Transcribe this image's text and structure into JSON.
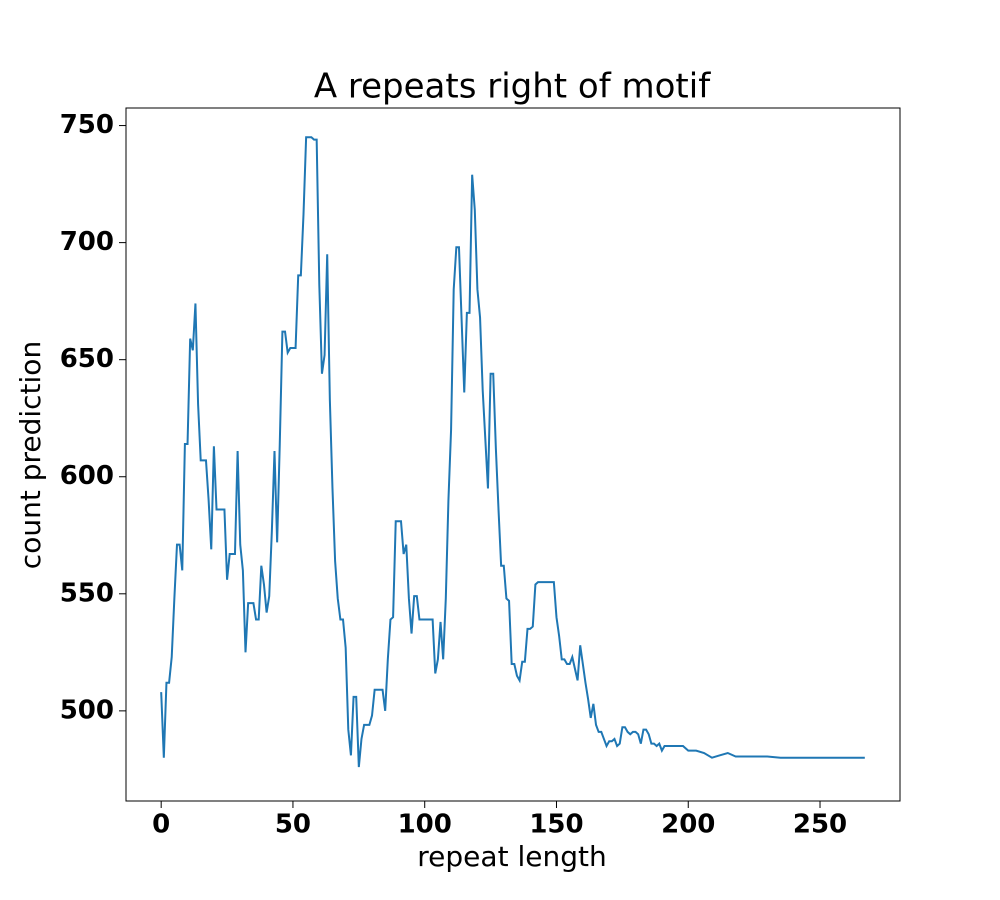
{
  "chart_data": {
    "type": "line",
    "title": "A repeats right of motif",
    "xlabel": "repeat length",
    "ylabel": "count prediction",
    "color": "#1f77b4",
    "x": [
      0,
      1,
      2,
      3,
      4,
      5,
      6,
      7,
      8,
      9,
      10,
      11,
      12,
      13,
      14,
      15,
      16,
      17,
      18,
      19,
      20,
      21,
      22,
      23,
      24,
      25,
      26,
      27,
      28,
      29,
      30,
      31,
      32,
      33,
      34,
      35,
      36,
      37,
      38,
      39,
      40,
      41,
      42,
      43,
      44,
      45,
      46,
      47,
      48,
      49,
      50,
      51,
      52,
      53,
      54,
      55,
      56,
      57,
      58,
      59,
      60,
      61,
      62,
      63,
      64,
      65,
      66,
      67,
      68,
      69,
      70,
      71,
      72,
      73,
      74,
      75,
      76,
      77,
      78,
      79,
      80,
      81,
      82,
      83,
      84,
      85,
      86,
      87,
      88,
      89,
      90,
      91,
      92,
      93,
      94,
      95,
      96,
      97,
      98,
      99,
      100,
      101,
      102,
      103,
      104,
      105,
      106,
      107,
      108,
      109,
      110,
      111,
      112,
      113,
      114,
      115,
      116,
      117,
      118,
      119,
      120,
      121,
      122,
      123,
      124,
      125,
      126,
      127,
      128,
      129,
      130,
      131,
      132,
      133,
      134,
      135,
      136,
      137,
      138,
      139,
      140,
      141,
      142,
      143,
      144,
      145,
      146,
      147,
      148,
      149,
      150,
      151,
      152,
      153,
      154,
      155,
      156,
      157,
      158,
      159,
      160,
      161,
      162,
      163,
      164,
      165,
      166,
      167,
      168,
      169,
      170,
      171,
      172,
      173,
      174,
      175,
      176,
      177,
      178,
      179,
      180,
      181,
      182,
      183,
      184,
      185,
      186,
      187,
      188,
      189,
      190,
      191,
      195,
      198,
      200,
      203,
      206,
      209,
      212,
      215,
      218,
      220,
      225,
      230,
      235,
      240,
      250,
      260,
      267
    ],
    "values": [
      508,
      480,
      512,
      512,
      523,
      548,
      571,
      571,
      560,
      614,
      614,
      659,
      654,
      674,
      631,
      607,
      607,
      607,
      590,
      569,
      613,
      586,
      586,
      586,
      586,
      556,
      567,
      567,
      567,
      611,
      571,
      560,
      525,
      546,
      546,
      546,
      539,
      539,
      562,
      554,
      542,
      549,
      577,
      611,
      572,
      614,
      662,
      662,
      653,
      655,
      655,
      655,
      686,
      686,
      712,
      745,
      745,
      745,
      744,
      744,
      682,
      644,
      652,
      695,
      633,
      595,
      564,
      548,
      539,
      539,
      527,
      492,
      481,
      506,
      506,
      476,
      488,
      494,
      494,
      494,
      498,
      509,
      509,
      509,
      509,
      500,
      522,
      539,
      540,
      581,
      581,
      581,
      567,
      571,
      548,
      533,
      549,
      549,
      539,
      539,
      539,
      539,
      539,
      539,
      516,
      522,
      538,
      522,
      548,
      590,
      620,
      680,
      698,
      698,
      667,
      636,
      670,
      670,
      729,
      714,
      680,
      668,
      637,
      616,
      595,
      644,
      644,
      612,
      586,
      562,
      562,
      548,
      547,
      520,
      520,
      515,
      513,
      521,
      521,
      535,
      535,
      536,
      554,
      555,
      555,
      555,
      555,
      555,
      555,
      555,
      540,
      532,
      522,
      522,
      520,
      520,
      523,
      518,
      513,
      528,
      520,
      512,
      505,
      497,
      503,
      494,
      491,
      491,
      488,
      485,
      487,
      487,
      488,
      485,
      486,
      493,
      493,
      491,
      490,
      491,
      491,
      490,
      486,
      492,
      492,
      490,
      486,
      486,
      485,
      486,
      483,
      485,
      485,
      485,
      483,
      483,
      482,
      480,
      481,
      482,
      480.5,
      480.5,
      480.5,
      480.5,
      480,
      480,
      480,
      480,
      480
    ],
    "xlim": [
      -13.35,
      280.35
    ],
    "ylim": [
      461.5,
      757.5
    ],
    "xticks": [
      0,
      50,
      100,
      150,
      200,
      250
    ],
    "yticks": [
      500,
      550,
      600,
      650,
      700,
      750
    ]
  }
}
